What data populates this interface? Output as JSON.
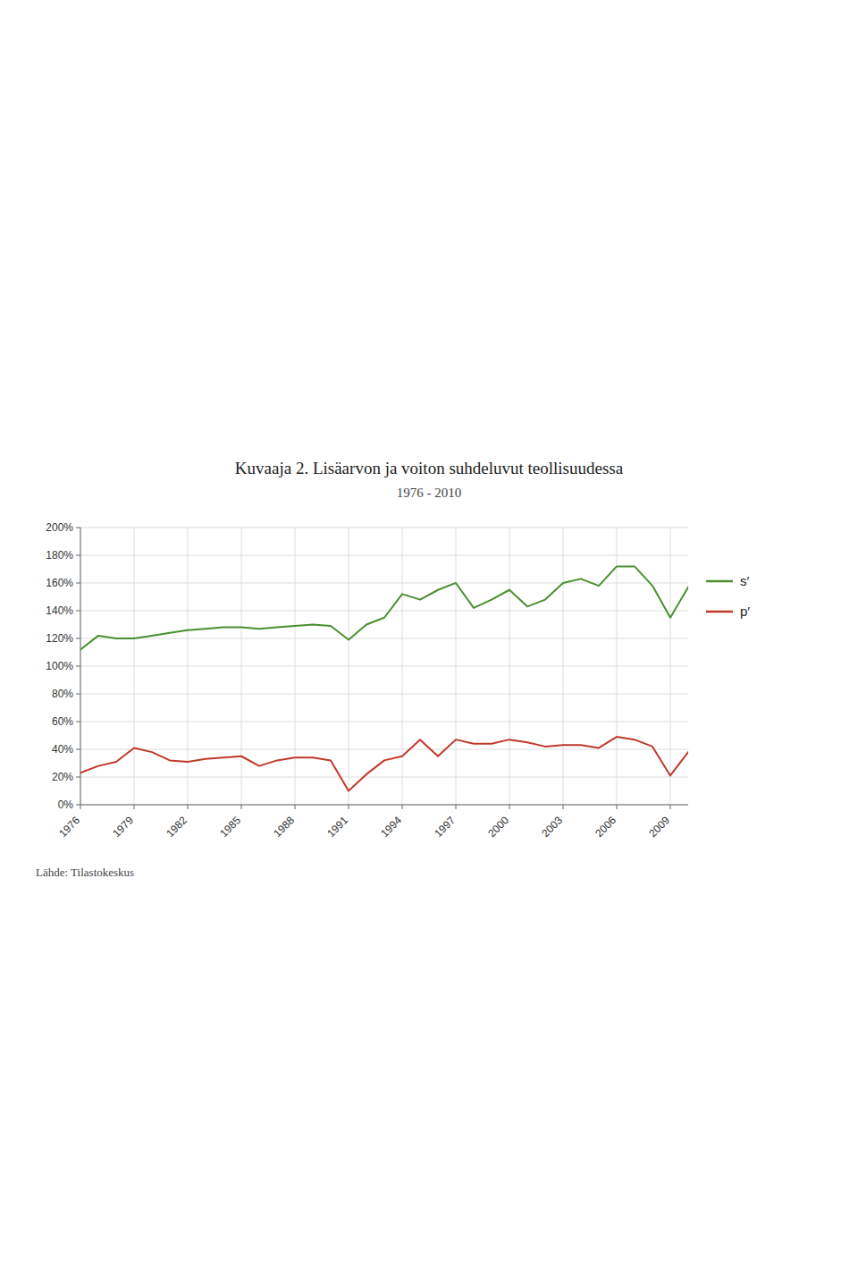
{
  "chart_data": {
    "type": "line",
    "title": "Kuvaaja 2. Lisäarvon ja voiton suhdeluvut teollisuudessa",
    "subtitle": "1976 - 2010",
    "annotations": [
      "Lähde: Tilastokeskus"
    ],
    "x": [
      1976,
      1977,
      1978,
      1979,
      1980,
      1981,
      1982,
      1983,
      1984,
      1985,
      1986,
      1987,
      1988,
      1989,
      1990,
      1991,
      1992,
      1993,
      1994,
      1995,
      1996,
      1997,
      1998,
      1999,
      2000,
      2001,
      2002,
      2003,
      2004,
      2005,
      2006,
      2007,
      2008,
      2009,
      2010
    ],
    "series": [
      {
        "name": "s′",
        "color": "#4a8f2f",
        "values": [
          1.12,
          1.22,
          1.2,
          1.2,
          1.22,
          1.24,
          1.26,
          1.27,
          1.28,
          1.28,
          1.27,
          1.28,
          1.29,
          1.3,
          1.29,
          1.19,
          1.3,
          1.35,
          1.52,
          1.48,
          1.55,
          1.6,
          1.42,
          1.48,
          1.55,
          1.43,
          1.48,
          1.6,
          1.63,
          1.58,
          1.72,
          1.72,
          1.58,
          1.35,
          1.57
        ]
      },
      {
        "name": "p′",
        "color": "#c0392b",
        "values": [
          0.23,
          0.28,
          0.31,
          0.41,
          0.38,
          0.32,
          0.31,
          0.33,
          0.34,
          0.35,
          0.28,
          0.32,
          0.34,
          0.34,
          0.32,
          0.1,
          0.22,
          0.32,
          0.35,
          0.47,
          0.35,
          0.47,
          0.44,
          0.44,
          0.47,
          0.45,
          0.42,
          0.43,
          0.43,
          0.41,
          0.49,
          0.47,
          0.42,
          0.21,
          0.38
        ]
      }
    ],
    "xlim": [
      1976,
      2010
    ],
    "xticks": [
      1976,
      1979,
      1982,
      1985,
      1988,
      1991,
      1994,
      1997,
      2000,
      2003,
      2006,
      2009
    ],
    "ylim": [
      0,
      2.0
    ],
    "yticks": [
      {
        "value": 0.0,
        "label": "0%"
      },
      {
        "value": 0.2,
        "label": "20%"
      },
      {
        "value": 0.4,
        "label": "40%"
      },
      {
        "value": 0.6,
        "label": "60%"
      },
      {
        "value": 0.8,
        "label": "80%"
      },
      {
        "value": 1.0,
        "label": "100%"
      },
      {
        "value": 1.2,
        "label": "120%"
      },
      {
        "value": 1.4,
        "label": "140%"
      },
      {
        "value": 1.6,
        "label": "160%"
      },
      {
        "value": 1.8,
        "label": "180%"
      },
      {
        "value": 2.0,
        "label": "200%"
      }
    ],
    "grid": true,
    "legend": "right"
  }
}
